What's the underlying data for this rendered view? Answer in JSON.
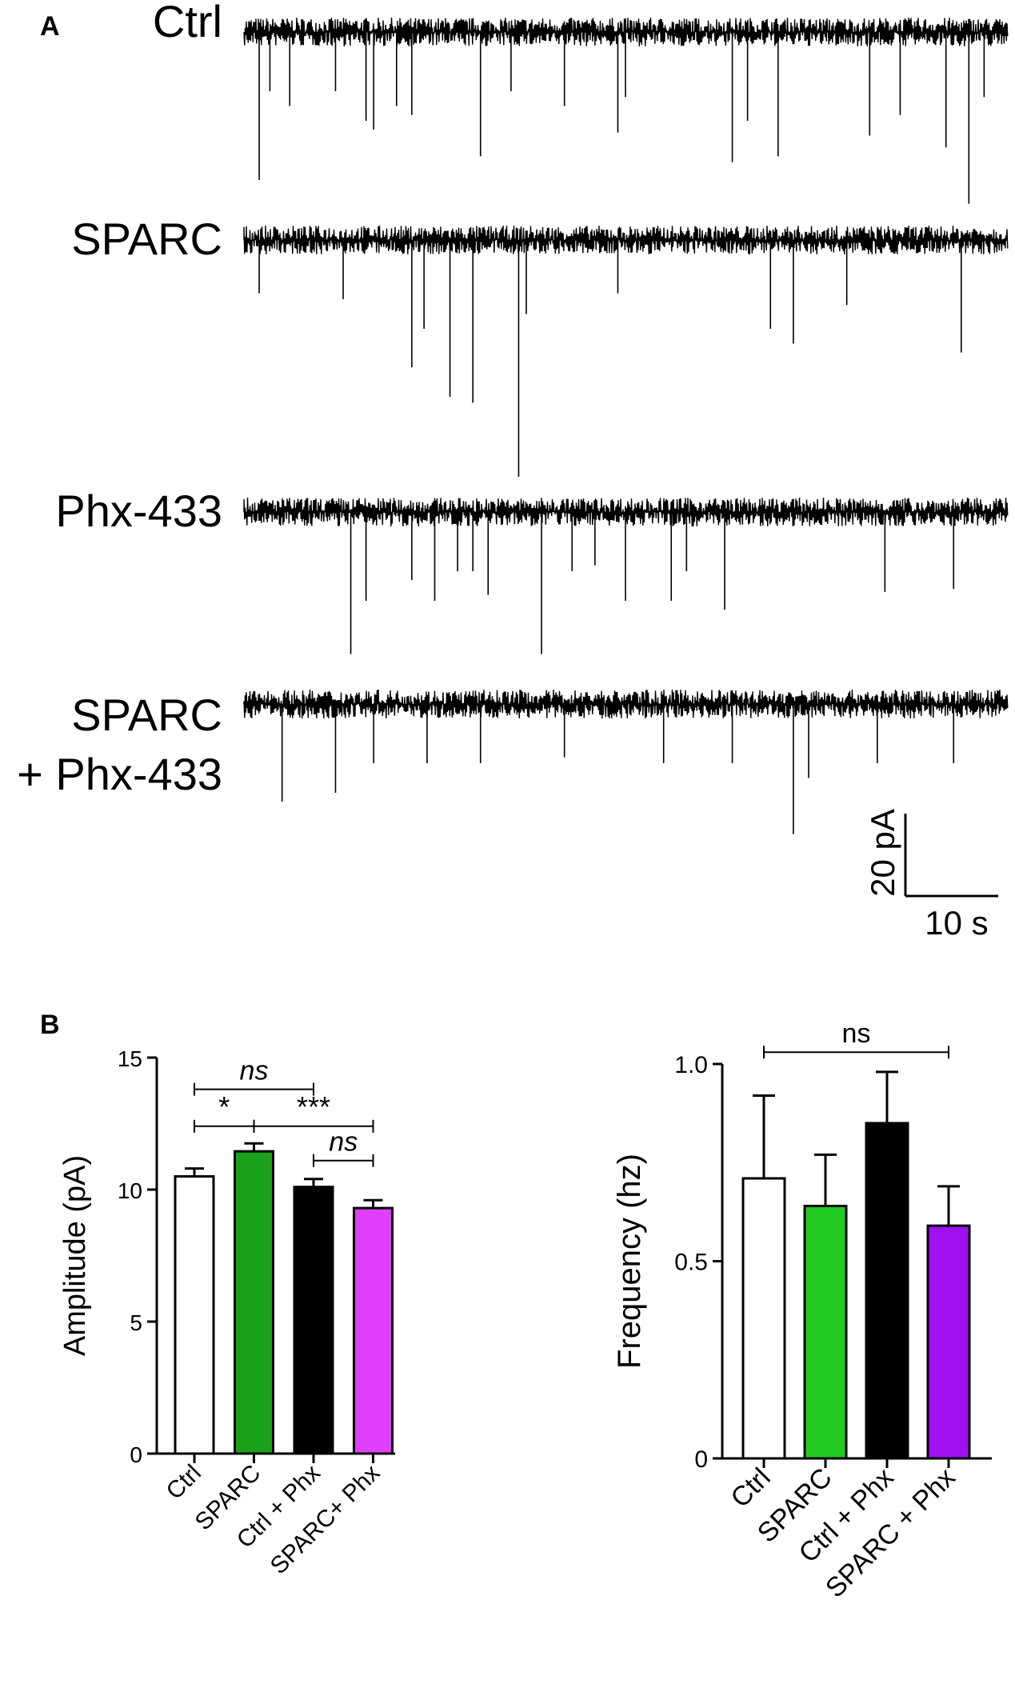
{
  "panel_labels": {
    "a": "A",
    "b": "B"
  },
  "panel_a": {
    "traces": [
      {
        "label_lines": [
          "Ctrl"
        ],
        "events": [
          [
            0.02,
            0.5
          ],
          [
            0.034,
            0.2
          ],
          [
            0.06,
            0.25
          ],
          [
            0.12,
            0.2
          ],
          [
            0.16,
            0.3
          ],
          [
            0.17,
            0.33
          ],
          [
            0.2,
            0.25
          ],
          [
            0.22,
            0.28
          ],
          [
            0.31,
            0.42
          ],
          [
            0.35,
            0.2
          ],
          [
            0.42,
            0.25
          ],
          [
            0.49,
            0.34
          ],
          [
            0.5,
            0.22
          ],
          [
            0.64,
            0.44
          ],
          [
            0.66,
            0.3
          ],
          [
            0.7,
            0.42
          ],
          [
            0.82,
            0.35
          ],
          [
            0.86,
            0.28
          ],
          [
            0.92,
            0.39
          ],
          [
            0.95,
            0.58
          ],
          [
            0.97,
            0.22
          ]
        ]
      },
      {
        "label_lines": [
          "SPARC"
        ],
        "events": [
          [
            0.02,
            0.18
          ],
          [
            0.13,
            0.2
          ],
          [
            0.22,
            0.43
          ],
          [
            0.236,
            0.3
          ],
          [
            0.27,
            0.53
          ],
          [
            0.3,
            0.55
          ],
          [
            0.36,
            0.8
          ],
          [
            0.37,
            0.25
          ],
          [
            0.49,
            0.18
          ],
          [
            0.69,
            0.3
          ],
          [
            0.72,
            0.35
          ],
          [
            0.79,
            0.22
          ],
          [
            0.94,
            0.38
          ]
        ]
      },
      {
        "label_lines": [
          "Phx-433"
        ],
        "events": [
          [
            0.14,
            0.48
          ],
          [
            0.16,
            0.3
          ],
          [
            0.22,
            0.23
          ],
          [
            0.25,
            0.3
          ],
          [
            0.28,
            0.2
          ],
          [
            0.3,
            0.2
          ],
          [
            0.32,
            0.28
          ],
          [
            0.39,
            0.48
          ],
          [
            0.43,
            0.2
          ],
          [
            0.46,
            0.18
          ],
          [
            0.5,
            0.3
          ],
          [
            0.56,
            0.3
          ],
          [
            0.58,
            0.2
          ],
          [
            0.63,
            0.33
          ],
          [
            0.84,
            0.27
          ],
          [
            0.93,
            0.26
          ]
        ]
      },
      {
        "label_lines": [
          "SPARC",
          "+ Phx-433"
        ],
        "events": [
          [
            0.05,
            0.33
          ],
          [
            0.12,
            0.3
          ],
          [
            0.17,
            0.2
          ],
          [
            0.24,
            0.2
          ],
          [
            0.31,
            0.2
          ],
          [
            0.42,
            0.18
          ],
          [
            0.55,
            0.2
          ],
          [
            0.64,
            0.2
          ],
          [
            0.72,
            0.44
          ],
          [
            0.74,
            0.25
          ],
          [
            0.83,
            0.2
          ],
          [
            0.93,
            0.2
          ]
        ]
      }
    ],
    "scale_bar": {
      "y_label": "20 pA",
      "x_label": "10 s"
    }
  },
  "chart_data": [
    {
      "type": "bar",
      "categories": [
        "Ctrl",
        "SPARC",
        "Ctrl + Phx",
        "SPARC+ Phx"
      ],
      "values": [
        10.5,
        11.45,
        10.1,
        9.3
      ],
      "errors": [
        0.3,
        0.3,
        0.3,
        0.3
      ],
      "colors": [
        "#ffffff",
        "#1aa01a",
        "#000000",
        "#e040fb"
      ],
      "ylabel": "Amplitude (pA)",
      "xlabel": "",
      "ylim": [
        0,
        15
      ],
      "yticks": [
        0,
        5,
        10,
        15
      ],
      "grid": false,
      "significance": [
        {
          "from": 0,
          "to": 2,
          "label": "ns",
          "italic": true,
          "y": 13.8
        },
        {
          "from": 0,
          "to": 1,
          "label": "*",
          "italic": false,
          "y": 12.4
        },
        {
          "from": 1,
          "to": 3,
          "label": "***",
          "italic": false,
          "y": 12.4
        },
        {
          "from": 2,
          "to": 3,
          "label": "ns",
          "italic": true,
          "y": 11.1
        }
      ]
    },
    {
      "type": "bar",
      "categories": [
        "Ctrl",
        "SPARC",
        "Ctrl + Phx",
        "SPARC + Phx"
      ],
      "values": [
        0.71,
        0.64,
        0.85,
        0.59
      ],
      "errors": [
        0.21,
        0.13,
        0.13,
        0.1
      ],
      "colors": [
        "#ffffff",
        "#22cc22",
        "#000000",
        "#a010f0"
      ],
      "ylabel": "Frequency (hz)",
      "xlabel": "",
      "ylim": [
        0,
        1.0
      ],
      "yticks": [
        0,
        0.5,
        1.0
      ],
      "ytick_labels": [
        "0",
        "0.5",
        "1.0"
      ],
      "grid": false,
      "significance": [
        {
          "from": 0,
          "to": 3,
          "label": "ns",
          "italic": false,
          "y": 1.03
        }
      ]
    }
  ]
}
